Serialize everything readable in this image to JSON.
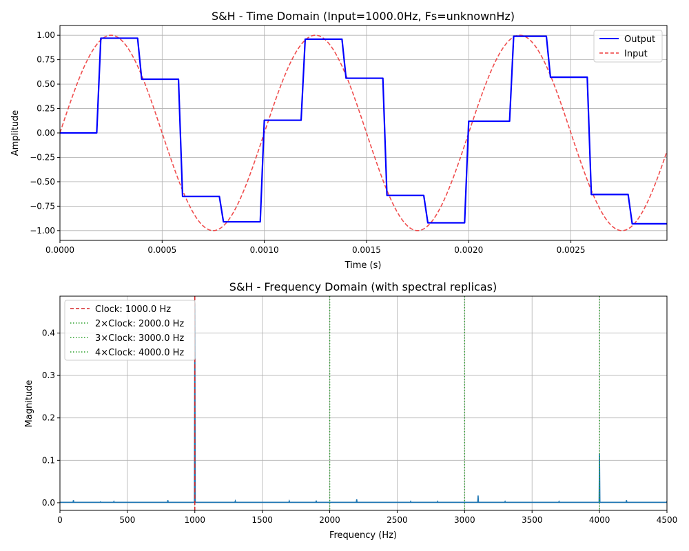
{
  "chart_data": [
    {
      "type": "line",
      "title": "S&H - Time Domain (Input=1000.0Hz, Fs=unknownHz)",
      "xlabel": "Time (s)",
      "ylabel": "Amplitude",
      "xlim": [
        0,
        0.00297
      ],
      "ylim": [
        -1.1,
        1.1
      ],
      "xticks": [
        "0.0000",
        "0.0005",
        "0.0010",
        "0.0015",
        "0.0020",
        "0.0025"
      ],
      "xtick_values": [
        0,
        0.0005,
        0.001,
        0.0015,
        0.002,
        0.0025
      ],
      "yticks": [
        "−1.00",
        "−0.75",
        "−0.50",
        "−0.25",
        "0.00",
        "0.25",
        "0.50",
        "0.75",
        "1.00"
      ],
      "ytick_values": [
        -1.0,
        -0.75,
        -0.5,
        -0.25,
        0.0,
        0.25,
        0.5,
        0.75,
        1.0
      ],
      "grid": true,
      "legend_position": "top-right",
      "series": [
        {
          "name": "Output",
          "color": "#0000ff",
          "style": "solid",
          "x": [
            0,
            0.00018,
            0.0002,
            0.00038,
            0.0004,
            0.00058,
            0.0006,
            0.00078,
            0.0008,
            0.00098,
            0.001,
            0.00118,
            0.0012,
            0.00138,
            0.0014,
            0.00158,
            0.0016,
            0.00178,
            0.0018,
            0.00198,
            0.002,
            0.0022,
            0.00222,
            0.00238,
            0.0024,
            0.00258,
            0.0026,
            0.00278,
            0.0028,
            0.00297
          ],
          "y": [
            0,
            0,
            0.97,
            0.97,
            0.55,
            0.55,
            -0.65,
            -0.65,
            -0.91,
            -0.91,
            0.13,
            0.13,
            0.96,
            0.96,
            0.56,
            0.56,
            -0.64,
            -0.64,
            -0.92,
            -0.92,
            0.12,
            0.12,
            0.99,
            0.99,
            0.57,
            0.57,
            -0.63,
            -0.63,
            -0.93,
            -0.93
          ]
        },
        {
          "name": "Input",
          "color": "#ee3b3b",
          "style": "dashed",
          "function": "sin",
          "frequency_hz": 1000,
          "amplitude": 1.0
        }
      ]
    },
    {
      "type": "line",
      "title": "S&H - Frequency Domain (with spectral replicas)",
      "xlabel": "Frequency (Hz)",
      "ylabel": "Magnitude",
      "xlim": [
        0,
        4500
      ],
      "ylim": [
        -0.018,
        0.487
      ],
      "xticks": [
        "0",
        "500",
        "1000",
        "1500",
        "2000",
        "2500",
        "3000",
        "3500",
        "4000",
        "4500"
      ],
      "xtick_values": [
        0,
        500,
        1000,
        1500,
        2000,
        2500,
        3000,
        3500,
        4000,
        4500
      ],
      "yticks": [
        "0.0",
        "0.1",
        "0.2",
        "0.3",
        "0.4"
      ],
      "ytick_values": [
        0.0,
        0.1,
        0.2,
        0.3,
        0.4
      ],
      "grid": true,
      "legend_position": "top-left",
      "spectrum": {
        "color": "#1f77b4",
        "peaks": [
          {
            "f": 100,
            "m": 0.006
          },
          {
            "f": 300,
            "m": 0.002
          },
          {
            "f": 400,
            "m": 0.003
          },
          {
            "f": 800,
            "m": 0.006
          },
          {
            "f": 1000,
            "m": 0.47
          },
          {
            "f": 1300,
            "m": 0.004
          },
          {
            "f": 1700,
            "m": 0.004
          },
          {
            "f": 1900,
            "m": 0.005
          },
          {
            "f": 2200,
            "m": 0.008
          },
          {
            "f": 2600,
            "m": 0.003
          },
          {
            "f": 2800,
            "m": 0.003
          },
          {
            "f": 3100,
            "m": 0.017
          },
          {
            "f": 3300,
            "m": 0.003
          },
          {
            "f": 3700,
            "m": 0.003
          },
          {
            "f": 4000,
            "m": 0.115
          },
          {
            "f": 4200,
            "m": 0.006
          },
          {
            "f": 4500,
            "m": 0.003
          }
        ]
      },
      "markers": [
        {
          "name": "Clock: 1000.0 Hz",
          "x": 1000,
          "color": "#d62728",
          "style": "dashed"
        },
        {
          "name": "2×Clock: 2000.0 Hz",
          "x": 2000,
          "color": "#2ca02c",
          "style": "dotted"
        },
        {
          "name": "3×Clock: 3000.0 Hz",
          "x": 3000,
          "color": "#2ca02c",
          "style": "dotted"
        },
        {
          "name": "4×Clock: 4000.0 Hz",
          "x": 4000,
          "color": "#2ca02c",
          "style": "dotted"
        }
      ]
    }
  ]
}
